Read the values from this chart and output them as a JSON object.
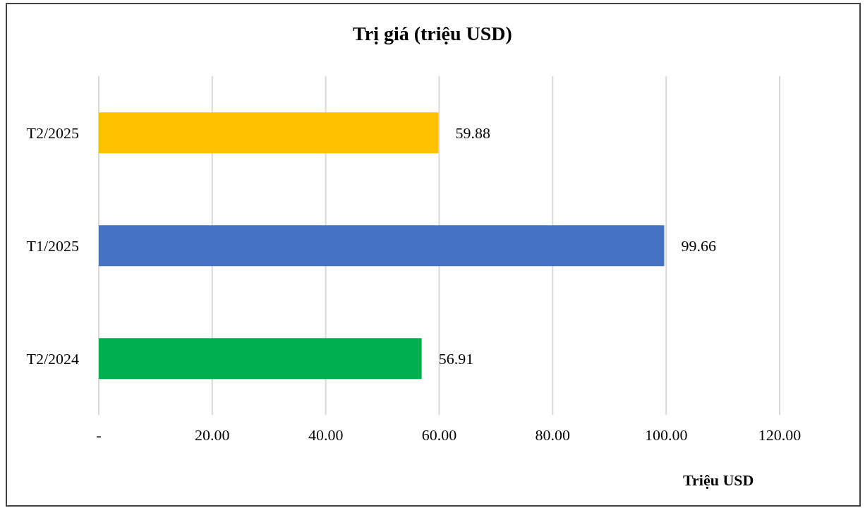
{
  "chart_data": {
    "type": "bar",
    "orientation": "horizontal",
    "title": "Trị giá (triệu USD)",
    "xlabel": "Triệu USD",
    "categories": [
      "T2/2025",
      "T1/2025",
      "T2/2024"
    ],
    "values": [
      59.88,
      99.66,
      56.91
    ],
    "colors": [
      "#ffc000",
      "#4472c4",
      "#00b050"
    ],
    "xlim": [
      0,
      120
    ],
    "xticks": [
      {
        "value": 0,
        "label": "-"
      },
      {
        "value": 20,
        "label": "20.00"
      },
      {
        "value": 40,
        "label": "40.00"
      },
      {
        "value": 60,
        "label": "60.00"
      },
      {
        "value": 80,
        "label": "80.00"
      },
      {
        "value": 100,
        "label": "100.00"
      },
      {
        "value": 120,
        "label": "120.00"
      }
    ],
    "grid": "x",
    "data_labels": true
  }
}
